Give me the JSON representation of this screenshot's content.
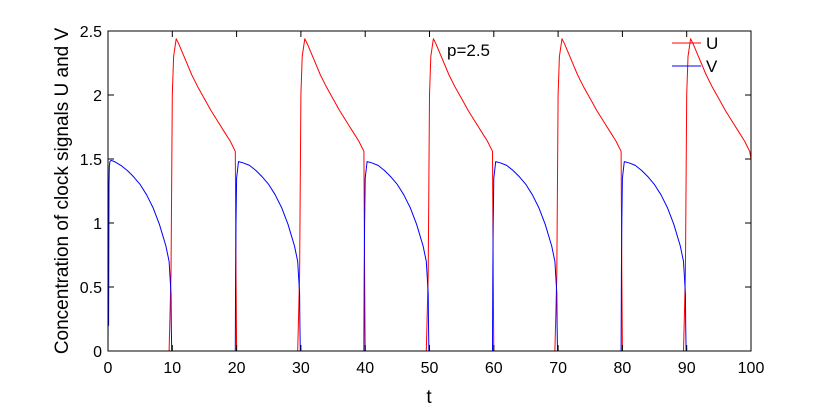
{
  "chart_data": {
    "type": "line",
    "title": "",
    "xlabel": "t",
    "ylabel": "Concentration of clock signals U and V",
    "xlim": [
      0,
      100
    ],
    "ylim": [
      0,
      2.5
    ],
    "xticks": [
      0,
      10,
      20,
      30,
      40,
      50,
      60,
      70,
      80,
      90,
      100
    ],
    "yticks": [
      0,
      0.5,
      1,
      1.5,
      2,
      2.5
    ],
    "ytick_labels": [
      "0",
      "0.5",
      "1",
      "1.5",
      "2",
      "2.5"
    ],
    "grid": false,
    "legend_position": "top-right",
    "annotation": "p=2.5",
    "series": [
      {
        "name": "U",
        "color": "#ff0000",
        "x": [
          0,
          9.5,
          9.8,
          10.0,
          10.2,
          10.6,
          11,
          12,
          13,
          14,
          15,
          16,
          17,
          18,
          19,
          19.8,
          19.9,
          20.0,
          29.5,
          29.8,
          30.0,
          30.2,
          30.6,
          31,
          32,
          33,
          34,
          35,
          36,
          37,
          38,
          39,
          39.8,
          39.9,
          40.0,
          49.5,
          49.8,
          50.0,
          50.2,
          50.6,
          51,
          52,
          53,
          54,
          55,
          56,
          57,
          58,
          59,
          59.8,
          59.9,
          60.0,
          69.5,
          69.8,
          70.0,
          70.2,
          70.6,
          71,
          72,
          73,
          74,
          75,
          76,
          77,
          78,
          79,
          79.8,
          79.9,
          80.0,
          89.5,
          89.8,
          90.0,
          90.2,
          90.6,
          91,
          92,
          93,
          94,
          95,
          96,
          97,
          98,
          99,
          99.8,
          100
        ],
        "y": [
          0.0,
          0.0,
          0.6,
          2.0,
          2.3,
          2.44,
          2.4,
          2.28,
          2.16,
          2.06,
          1.97,
          1.88,
          1.8,
          1.72,
          1.64,
          1.56,
          0.6,
          0.0,
          0.0,
          0.6,
          2.0,
          2.3,
          2.44,
          2.4,
          2.28,
          2.16,
          2.06,
          1.97,
          1.88,
          1.8,
          1.72,
          1.64,
          1.56,
          0.6,
          0.0,
          0.0,
          0.6,
          2.0,
          2.3,
          2.44,
          2.4,
          2.28,
          2.16,
          2.06,
          1.97,
          1.88,
          1.8,
          1.72,
          1.64,
          1.56,
          0.6,
          0.0,
          0.0,
          0.6,
          2.0,
          2.3,
          2.44,
          2.4,
          2.28,
          2.16,
          2.06,
          1.97,
          1.88,
          1.8,
          1.72,
          1.64,
          1.56,
          0.6,
          0.0,
          0.0,
          0.6,
          2.0,
          2.3,
          2.44,
          2.4,
          2.28,
          2.16,
          2.06,
          1.97,
          1.88,
          1.8,
          1.72,
          1.64,
          1.56,
          1.5
        ]
      },
      {
        "name": "V",
        "color": "#0000ff",
        "x": [
          0,
          0.05,
          0.1,
          0.15,
          0.2,
          0.3,
          0.5,
          1,
          2,
          3,
          4,
          5,
          6,
          7,
          8,
          9,
          9.5,
          9.8,
          9.85,
          9.9,
          19.8,
          19.85,
          19.9,
          20.0,
          20.3,
          21,
          22,
          23,
          24,
          25,
          26,
          27,
          28,
          29,
          29.5,
          29.8,
          29.85,
          29.9,
          39.8,
          39.85,
          39.9,
          40.0,
          40.3,
          41,
          42,
          43,
          44,
          45,
          46,
          47,
          48,
          49,
          49.5,
          49.8,
          49.85,
          49.9,
          59.8,
          59.85,
          59.9,
          60.0,
          60.3,
          61,
          62,
          63,
          64,
          65,
          66,
          67,
          68,
          69,
          69.5,
          69.8,
          69.85,
          69.9,
          79.8,
          79.85,
          79.9,
          80.0,
          80.3,
          81,
          82,
          83,
          84,
          85,
          86,
          87,
          88,
          89,
          89.5,
          89.8,
          89.85,
          89.9,
          100
        ],
        "y": [
          0.0,
          1.0,
          0.2,
          1.3,
          1.44,
          1.48,
          1.49,
          1.48,
          1.45,
          1.41,
          1.36,
          1.3,
          1.22,
          1.12,
          0.99,
          0.82,
          0.7,
          0.45,
          0.2,
          0.0,
          0.0,
          0.6,
          1.0,
          1.35,
          1.48,
          1.47,
          1.45,
          1.41,
          1.36,
          1.3,
          1.22,
          1.12,
          0.99,
          0.82,
          0.7,
          0.45,
          0.2,
          0.0,
          0.0,
          0.6,
          1.0,
          1.35,
          1.48,
          1.47,
          1.45,
          1.41,
          1.36,
          1.3,
          1.22,
          1.12,
          0.99,
          0.82,
          0.7,
          0.45,
          0.2,
          0.0,
          0.0,
          0.6,
          1.0,
          1.35,
          1.48,
          1.47,
          1.45,
          1.41,
          1.36,
          1.3,
          1.22,
          1.12,
          0.99,
          0.82,
          0.7,
          0.45,
          0.2,
          0.0,
          0.0,
          0.6,
          1.0,
          1.35,
          1.48,
          1.47,
          1.45,
          1.41,
          1.36,
          1.3,
          1.22,
          1.12,
          0.99,
          0.82,
          0.7,
          0.45,
          0.2,
          0.0,
          0.0
        ]
      }
    ]
  }
}
